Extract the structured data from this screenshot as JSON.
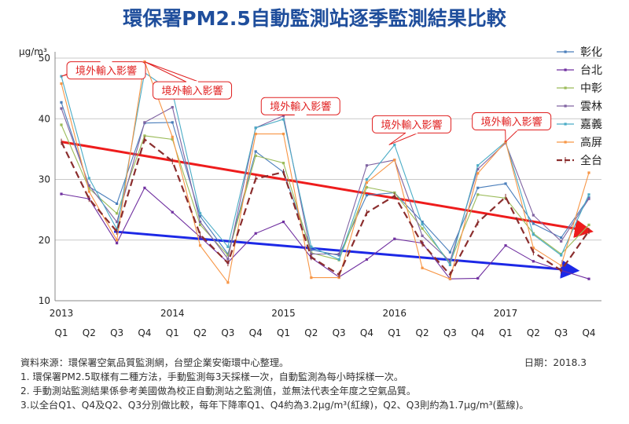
{
  "title": "環保署PM2.5自動監測站逐季監測結果比較",
  "notes": {
    "source": "資料來源：環保署空氣品質監測網，台塑企業安衛環中心整理。",
    "date": "日期：2018.3",
    "note1": "1. 環保署PM2.5取樣有二種方法，手動監測每3天採樣一次，自動監測為每小時採樣一次。",
    "note2": "2. 手動測站監測結果係參考美國做為校正自動測站之監測值，並無法代表全年度之空氣品質。",
    "note3": "3.以全台Q1、Q4及Q2、Q3分別做比較，每年下降率Q1、Q4約為3.2μg/m³(紅線)，Q2、Q3則約為1.7μg/m³(藍線)。"
  },
  "chart_data": {
    "type": "line",
    "ylabel": "μg/m³",
    "ylim": [
      10,
      50
    ],
    "yticks": [
      10,
      20,
      30,
      40,
      50
    ],
    "categories": [
      "Q1",
      "Q2",
      "Q3",
      "Q4",
      "Q1",
      "Q2",
      "Q3",
      "Q4",
      "Q1",
      "Q2",
      "Q3",
      "Q4",
      "Q1",
      "Q2",
      "Q3",
      "Q4",
      "Q1",
      "Q2",
      "Q3",
      "Q4"
    ],
    "years": [
      {
        "label": "2013",
        "index": 0
      },
      {
        "label": "2014",
        "index": 4
      },
      {
        "label": "2015",
        "index": 8
      },
      {
        "label": "2016",
        "index": 12
      },
      {
        "label": "2017",
        "index": 16
      }
    ],
    "series": [
      {
        "name": "彰化",
        "color": "#4a7ebb",
        "values": [
          42.7,
          28.8,
          26.0,
          39.3,
          39.4,
          23.9,
          17.7,
          34.6,
          31.2,
          18.4,
          17.5,
          27.4,
          27.8,
          23.0,
          18.0,
          28.6,
          29.3,
          22.7,
          20.4,
          27.0
        ]
      },
      {
        "name": "台北",
        "color": "#7030a0",
        "values": [
          27.6,
          26.8,
          19.5,
          28.6,
          24.6,
          20.5,
          16.3,
          21.1,
          23.0,
          17.1,
          13.9,
          16.8,
          20.2,
          19.5,
          13.6,
          13.7,
          19.1,
          16.5,
          15.0,
          13.6
        ]
      },
      {
        "name": "中彰",
        "color": "#9bbb59",
        "values": [
          39.0,
          28.5,
          24.4,
          37.2,
          36.6,
          22.5,
          17.5,
          33.9,
          32.7,
          17.9,
          16.7,
          28.7,
          27.8,
          21.9,
          16.3,
          27.5,
          26.9,
          21.1,
          17.7,
          22.5
        ]
      },
      {
        "name": "雲林",
        "color": "#8064a2",
        "values": [
          41.7,
          29.0,
          23.0,
          39.4,
          41.9,
          23.0,
          16.9,
          38.5,
          40.5,
          17.7,
          17.7,
          32.3,
          33.2,
          20.7,
          16.5,
          31.7,
          36.0,
          24.1,
          19.8,
          26.8
        ]
      },
      {
        "name": "嘉義",
        "color": "#4bacc6",
        "values": [
          47.0,
          30.2,
          21.8,
          47.6,
          44.4,
          24.4,
          18.9,
          38.5,
          39.9,
          18.9,
          16.8,
          30.0,
          35.7,
          22.6,
          15.9,
          32.3,
          36.2,
          20.9,
          17.5,
          27.5
        ]
      },
      {
        "name": "高屏",
        "color": "#f79646",
        "values": [
          45.8,
          28.0,
          20.0,
          49.4,
          37.0,
          19.1,
          13.0,
          37.5,
          37.5,
          13.8,
          13.8,
          29.5,
          33.2,
          15.4,
          13.6,
          31.0,
          36.2,
          18.7,
          15.8,
          31.1
        ]
      },
      {
        "name": "全台",
        "color": "#8b2e2e",
        "dashed": true,
        "values": [
          36.2,
          26.8,
          21.4,
          36.6,
          33.0,
          20.9,
          16.2,
          30.1,
          31.2,
          17.2,
          14.3,
          24.5,
          27.3,
          19.4,
          14.3,
          22.9,
          27.1,
          18.0,
          15.0,
          21.5
        ]
      }
    ],
    "trend_lines": [
      {
        "color": "#ee1c1c",
        "from": {
          "x": 0,
          "y": 36.2
        },
        "to": {
          "x": 19,
          "y": 21.5
        }
      },
      {
        "color": "#1c28e6",
        "from": {
          "x": 1.9,
          "y": 21.4
        },
        "to": {
          "x": 18.5,
          "y": 15.0
        }
      }
    ],
    "annotations": [
      {
        "text": "境外輸入影響",
        "box_x": 0.2,
        "box_y": 49.4,
        "tip_x": 0,
        "tip_y": 47.0
      },
      {
        "text": "境外輸入影響",
        "box_x": 3.3,
        "box_y": 46.1,
        "tip_x": 3,
        "tip_y": 49.4
      },
      {
        "text": "境外輸入影響",
        "box_x": 7.2,
        "box_y": 43.5,
        "tip_x": 7.8,
        "tip_y": 40.6
      },
      {
        "text": "境外輸入影響",
        "box_x": 11.2,
        "box_y": 40.5,
        "tip_x": 11.8,
        "tip_y": 35.7
      },
      {
        "text": "境外輸入影響",
        "box_x": 14.8,
        "box_y": 41.0,
        "tip_x": 16,
        "tip_y": 36.2
      }
    ]
  }
}
